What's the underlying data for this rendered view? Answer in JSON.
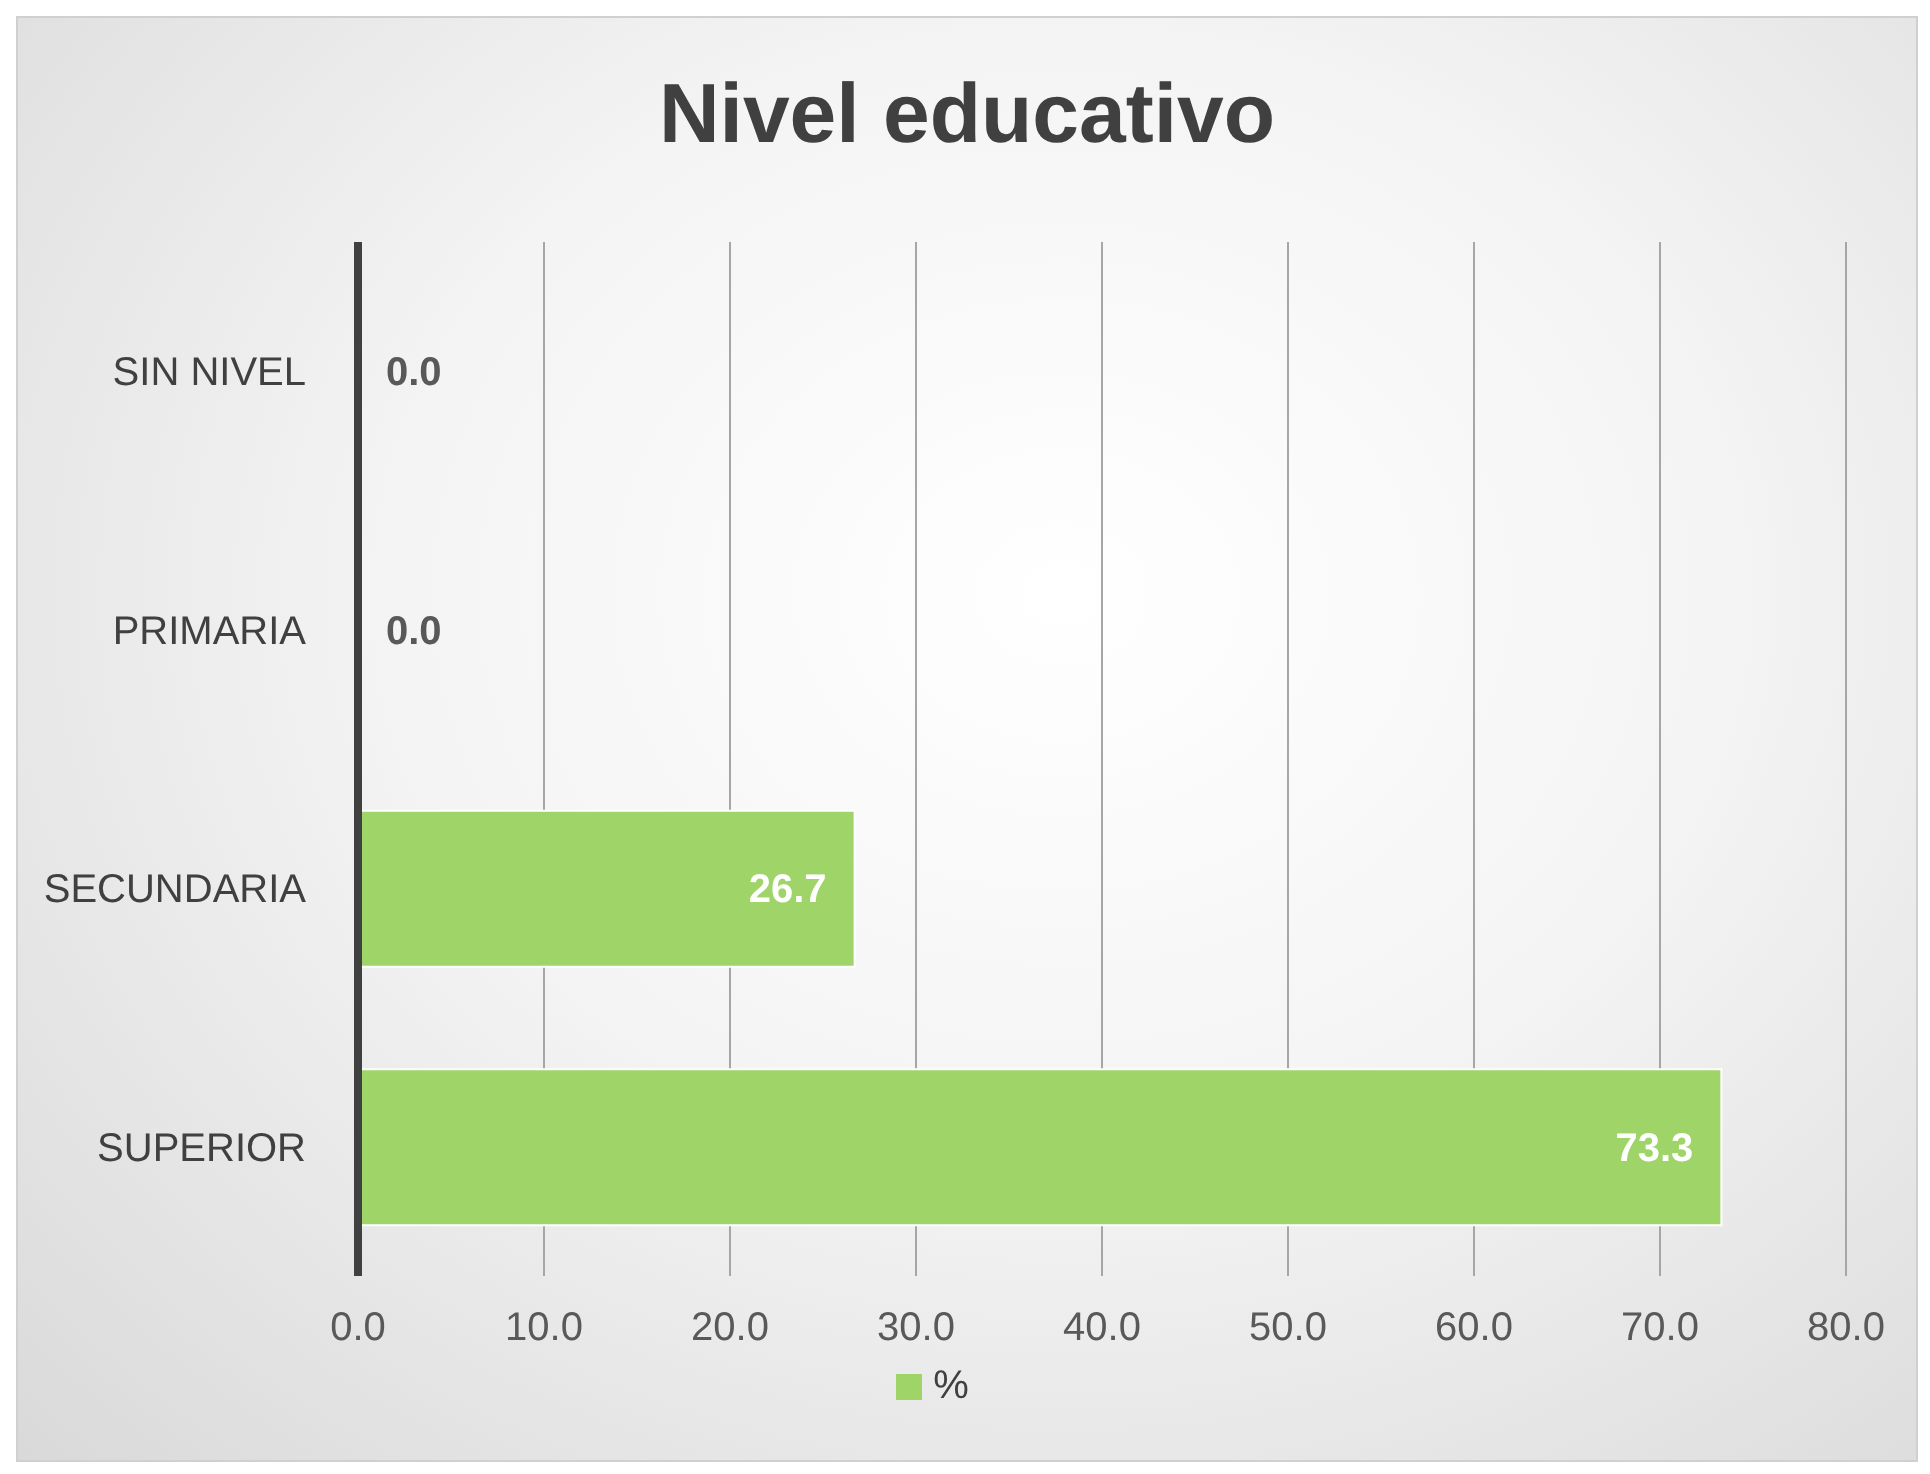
{
  "chart_data": {
    "type": "bar",
    "orientation": "horizontal",
    "title": "Nivel educativo",
    "categories": [
      "SIN NIVEL",
      "PRIMARIA",
      "SECUNDARIA",
      "SUPERIOR"
    ],
    "series": [
      {
        "name": "%",
        "color": "#9fd469",
        "values": [
          0,
          0,
          26.7,
          73.3
        ],
        "value_labels": [
          "0.0",
          "0.0",
          "26.7",
          "73.3"
        ]
      }
    ],
    "xlim": [
      0,
      80
    ],
    "xticks": [
      {
        "value": 0,
        "label": "0.0"
      },
      {
        "value": 10,
        "label": "10.0"
      },
      {
        "value": 20,
        "label": "20.0"
      },
      {
        "value": 30,
        "label": "30.0"
      },
      {
        "value": 40,
        "label": "40.0"
      },
      {
        "value": 50,
        "label": "50.0"
      },
      {
        "value": 60,
        "label": "60.0"
      },
      {
        "value": 70,
        "label": "70.0"
      },
      {
        "value": 80,
        "label": "80.0"
      }
    ],
    "grid": "x",
    "legend": "bottom"
  }
}
